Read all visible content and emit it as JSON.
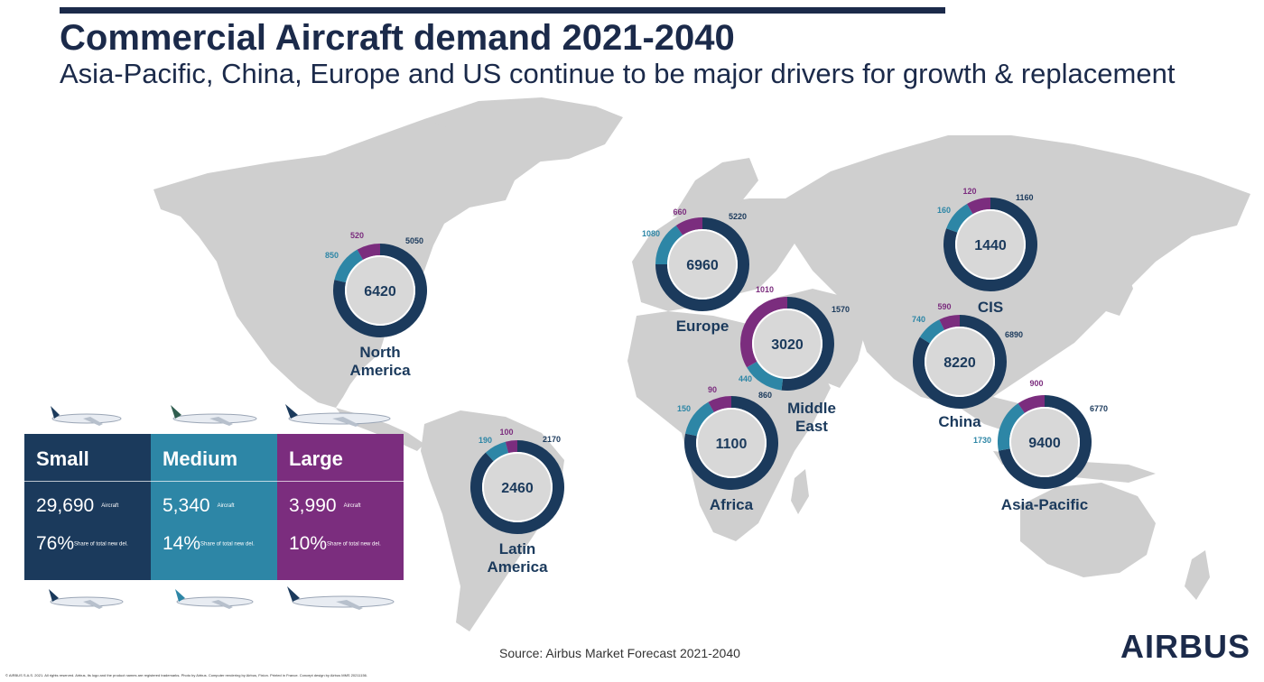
{
  "header": {
    "title": "Commercial Aircraft demand 2021-2040",
    "subtitle": "Asia-Pacific, China, Europe and US continue to be major drivers for growth & replacement"
  },
  "colors": {
    "small": "#1b3a5c",
    "medium": "#2d86a6",
    "large": "#7b2d7e",
    "land": "#cfcfcf"
  },
  "chart_data": {
    "type": "pie",
    "series_order": [
      "Small",
      "Medium",
      "Large"
    ],
    "regions": [
      {
        "name": "North America",
        "label_lines": [
          "North",
          "America"
        ],
        "total": "6420",
        "small": 5050,
        "medium": 850,
        "large": 520,
        "small_label": "5050",
        "medium_label": "850",
        "large_label": "520"
      },
      {
        "name": "Latin America",
        "label_lines": [
          "Latin",
          "America"
        ],
        "total": "2460",
        "small": 2170,
        "medium": 190,
        "large": 100,
        "small_label": "2170",
        "medium_label": "190",
        "large_label": "100"
      },
      {
        "name": "Europe",
        "label_lines": [
          "Europe"
        ],
        "total": "6960",
        "small": 5220,
        "medium": 1080,
        "large": 660,
        "small_label": "5220",
        "medium_label": "1080",
        "large_label": "660"
      },
      {
        "name": "Middle East",
        "label_lines": [
          "Middle",
          "East"
        ],
        "total": "3020",
        "small": 1570,
        "medium": 440,
        "large": 1010,
        "small_label": "1570",
        "medium_label": "440",
        "large_label": "1010"
      },
      {
        "name": "Africa",
        "label_lines": [
          "Africa"
        ],
        "total": "1100",
        "small": 860,
        "medium": 150,
        "large": 90,
        "small_label": "860",
        "medium_label": "150",
        "large_label": "90"
      },
      {
        "name": "CIS",
        "label_lines": [
          "CIS"
        ],
        "total": "1440",
        "small": 1160,
        "medium": 160,
        "large": 120,
        "small_label": "1160",
        "medium_label": "160",
        "large_label": "120"
      },
      {
        "name": "China",
        "label_lines": [
          "China"
        ],
        "total": "8220",
        "small": 6890,
        "medium": 740,
        "large": 590,
        "small_label": "6890",
        "medium_label": "740",
        "large_label": "590"
      },
      {
        "name": "Asia-Pacific",
        "label_lines": [
          "Asia-Pacific"
        ],
        "total": "9400",
        "small": 6770,
        "medium": 1730,
        "large": 900,
        "small_label": "6770",
        "medium_label": "1730",
        "large_label": "900"
      }
    ]
  },
  "legend": [
    {
      "name": "Small",
      "count": "29,690",
      "unit": "Aircraft",
      "share": "76%",
      "share_unit": "Share of total new del.",
      "color": "#1b3a5c"
    },
    {
      "name": "Medium",
      "count": "5,340",
      "unit": "Aircraft",
      "share": "14%",
      "share_unit": "Share of total new del.",
      "color": "#2d86a6"
    },
    {
      "name": "Large",
      "count": "3,990",
      "unit": "Aircraft",
      "share": "10%",
      "share_unit": "Share of total new del.",
      "color": "#7b2d7e"
    }
  ],
  "footer": {
    "source": "Source: Airbus Market Forecast 2021-2040",
    "logo": "AIRBUS",
    "fineprint": "© AIRBUS S.A.S. 2021. All rights reserved. Airbus, its logo and the product names are registered trademarks. Photo by Airbus. Computer rendering by Airbus, Fixion. Printed in France. Concept design by Airbus MMS 20211156."
  }
}
